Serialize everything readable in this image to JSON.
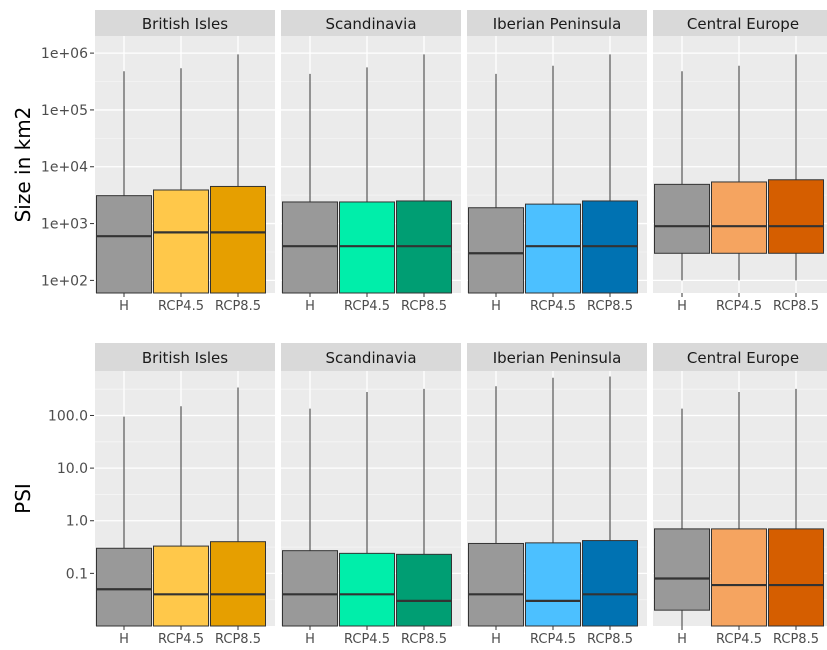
{
  "chart_data": [
    {
      "type": "boxplot",
      "ylabel": "Size in km2",
      "yscale": "log",
      "ylim": [
        60,
        2000000
      ],
      "yticks": [
        {
          "value": 100,
          "label": "1e+02"
        },
        {
          "value": 1000,
          "label": "1e+03"
        },
        {
          "value": 10000,
          "label": "1e+04"
        },
        {
          "value": 100000,
          "label": "1e+05"
        },
        {
          "value": 1000000,
          "label": "1e+06"
        }
      ],
      "categories": [
        "H",
        "RCP4.5",
        "RCP8.5"
      ],
      "facets": [
        {
          "title": "British Isles",
          "colors": [
            "#999999",
            "#FFC84A",
            "#E69F00"
          ],
          "boxes": [
            {
              "q1": 60,
              "median": 600,
              "q3": 3100,
              "max": 480000
            },
            {
              "q1": 60,
              "median": 700,
              "q3": 3900,
              "max": 540000
            },
            {
              "q1": 60,
              "median": 700,
              "q3": 4500,
              "max": 950000
            }
          ]
        },
        {
          "title": "Scandinavia",
          "colors": [
            "#999999",
            "#00EEAA",
            "#009E73"
          ],
          "boxes": [
            {
              "q1": 60,
              "median": 400,
              "q3": 2400,
              "max": 430000
            },
            {
              "q1": 60,
              "median": 400,
              "q3": 2400,
              "max": 560000
            },
            {
              "q1": 60,
              "median": 400,
              "q3": 2500,
              "max": 950000
            }
          ]
        },
        {
          "title": "Iberian Peninsula",
          "colors": [
            "#999999",
            "#4CC0FF",
            "#0072B2"
          ],
          "boxes": [
            {
              "q1": 60,
              "median": 300,
              "q3": 1900,
              "max": 430000
            },
            {
              "q1": 60,
              "median": 400,
              "q3": 2200,
              "max": 600000
            },
            {
              "q1": 60,
              "median": 400,
              "q3": 2500,
              "max": 950000
            }
          ]
        },
        {
          "title": "Central Europe",
          "colors": [
            "#999999",
            "#F5A460",
            "#D55E00"
          ],
          "boxes": [
            {
              "q1": 300,
              "median": 900,
              "q3": 4900,
              "min": 100,
              "max": 480000
            },
            {
              "q1": 300,
              "median": 900,
              "q3": 5400,
              "min": 100,
              "max": 600000
            },
            {
              "q1": 300,
              "median": 900,
              "q3": 5900,
              "min": 100,
              "max": 950000
            }
          ]
        }
      ]
    },
    {
      "type": "boxplot",
      "ylabel": "PSI",
      "yscale": "log",
      "ylim": [
        0.01,
        700
      ],
      "yticks": [
        {
          "value": 0.1,
          "label": "0.1"
        },
        {
          "value": 1,
          "label": "1.0"
        },
        {
          "value": 10,
          "label": "10.0"
        },
        {
          "value": 100,
          "label": "100.0"
        }
      ],
      "categories": [
        "H",
        "RCP4.5",
        "RCP8.5"
      ],
      "facets": [
        {
          "title": "British Isles",
          "colors": [
            "#999999",
            "#FFC84A",
            "#E69F00"
          ],
          "boxes": [
            {
              "q1": 0.01,
              "median": 0.05,
              "q3": 0.3,
              "max": 95
            },
            {
              "q1": 0.01,
              "median": 0.04,
              "q3": 0.33,
              "max": 150
            },
            {
              "q1": 0.01,
              "median": 0.04,
              "q3": 0.4,
              "max": 340
            }
          ]
        },
        {
          "title": "Scandinavia",
          "colors": [
            "#999999",
            "#00EEAA",
            "#009E73"
          ],
          "boxes": [
            {
              "q1": 0.01,
              "median": 0.04,
              "q3": 0.27,
              "max": 135
            },
            {
              "q1": 0.01,
              "median": 0.04,
              "q3": 0.24,
              "max": 280
            },
            {
              "q1": 0.01,
              "median": 0.03,
              "q3": 0.23,
              "max": 320
            }
          ]
        },
        {
          "title": "Iberian Peninsula",
          "colors": [
            "#999999",
            "#4CC0FF",
            "#0072B2"
          ],
          "boxes": [
            {
              "q1": 0.01,
              "median": 0.04,
              "q3": 0.37,
              "max": 360
            },
            {
              "q1": 0.01,
              "median": 0.03,
              "q3": 0.38,
              "max": 520
            },
            {
              "q1": 0.01,
              "median": 0.04,
              "q3": 0.42,
              "max": 550
            }
          ]
        },
        {
          "title": "Central Europe",
          "colors": [
            "#999999",
            "#F5A460",
            "#D55E00"
          ],
          "boxes": [
            {
              "q1": 0.02,
              "median": 0.08,
              "q3": 0.7,
              "min": 0.01,
              "max": 135
            },
            {
              "q1": 0.01,
              "median": 0.06,
              "q3": 0.7,
              "max": 280
            },
            {
              "q1": 0.01,
              "median": 0.06,
              "q3": 0.7,
              "max": 320
            }
          ]
        }
      ]
    }
  ]
}
